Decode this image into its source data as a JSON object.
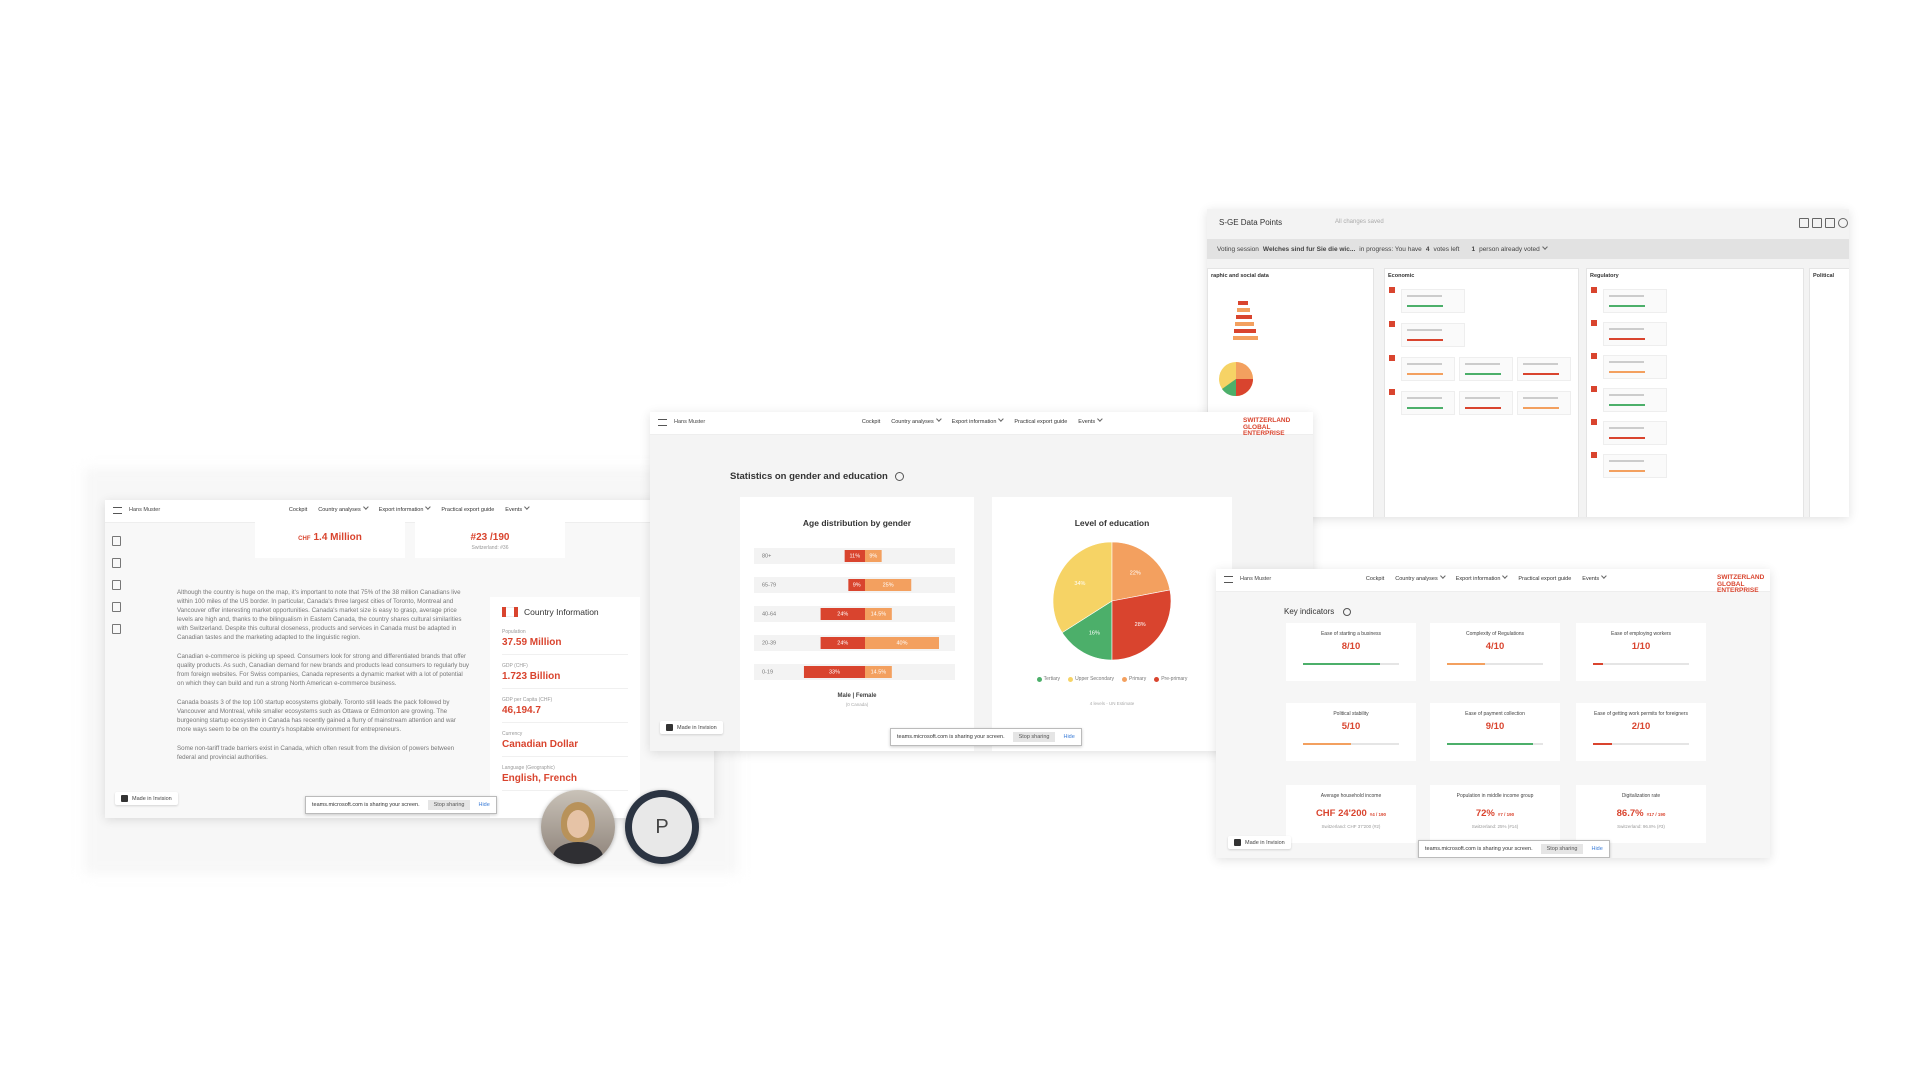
{
  "chart_data": [
    {
      "type": "bar",
      "title": "Age distribution by gender",
      "categories": [
        "80+",
        "65-79",
        "40-64",
        "20-39",
        "0-19"
      ],
      "series": [
        {
          "color": "#d9442e",
          "values": [
            11,
            9,
            24,
            24,
            33
          ],
          "value_labels": [
            "11%",
            "9%",
            "24%",
            "24%",
            "33%"
          ]
        },
        {
          "color": "#f3a05f",
          "values": [
            9,
            25,
            14.5,
            40,
            14.5
          ],
          "value_labels": [
            "9%",
            "25%",
            "14.5%",
            "40%",
            "14.5%"
          ]
        }
      ],
      "legend": "Male | Female",
      "note": "(0 Canada)"
    },
    {
      "type": "pie",
      "title": "Level of education",
      "categories": [
        "Tertiary",
        "Upper Secondary",
        "Primary",
        "Pre-primary"
      ],
      "values": [
        16,
        34,
        22,
        28
      ],
      "value_labels": [
        "16%",
        "34%",
        "22%",
        "28%"
      ],
      "colors": [
        "#4caf6a",
        "#f6d365",
        "#f3a05f",
        "#d9442e"
      ],
      "note": "4 levels - UN Estimate"
    }
  ],
  "left_page": {
    "user": "Hans Muster",
    "nav": [
      {
        "label": "Cockpit",
        "dropdown": false
      },
      {
        "label": "Country analyses",
        "dropdown": true
      },
      {
        "label": "Export information",
        "dropdown": true
      },
      {
        "label": "Practical export guide",
        "dropdown": false
      },
      {
        "label": "Events",
        "dropdown": true
      }
    ],
    "stat_cards": [
      {
        "prefix": "CHF",
        "value": "1.4 Million"
      },
      {
        "value": "#23 /190",
        "note": "Switzerland: #36"
      }
    ],
    "paragraphs": [
      "Although the country is huge on the map, it's important to note that 75% of the 38 million Canadians live within 100 miles of the US border. In particular, Canada's three largest cities of Toronto, Montreal and Vancouver offer interesting market opportunities. Canada's market size is easy to grasp, average price levels are high and, thanks to the bilingualism in Eastern Canada, the country shares cultural similarities with Switzerland. Despite this cultural closeness, products and services in Canada must be adapted in Canadian tastes and the marketing adapted to the linguistic region.",
      "Canadian e-commerce is picking up speed. Consumers look for strong and differentiated brands that offer quality products. As such, Canadian demand for new brands and products lead consumers to regularly buy from foreign websites. For Swiss companies, Canada represents a dynamic market with a lot of potential on which they can build and run a strong North American e-commerce business.",
      "Canada boasts 3 of the top 100 startup ecosystems globally. Toronto still leads the pack followed by Vancouver and Montreal, while smaller ecosystems such as Ottawa or Edmonton are growing. The burgeoning startup ecosystem in Canada has recently gained a flurry of mainstream attention and war more ways seem to be on the country's hospitable environment for entrepreneurs.",
      "Some non-tariff trade barriers exist in Canada, which often result from the division of powers between federal and provincial authorities."
    ],
    "country_info": {
      "title": "Country Information",
      "items": [
        {
          "label": "Population",
          "value": "37.59 Million"
        },
        {
          "label": "GDP (CHF)",
          "value": "1.723 Billion"
        },
        {
          "label": "GDP per Capita (CHF)",
          "value": "46,194.7"
        },
        {
          "label": "Currency",
          "value": "Canadian Dollar"
        },
        {
          "label": "Language (Geographic)",
          "value": "English, French"
        }
      ]
    },
    "badge": "Made in Invision",
    "share_bar": {
      "message": "teams.microsoft.com is sharing your screen.",
      "stop": "Stop sharing",
      "hide": "Hide"
    }
  },
  "center_page": {
    "user": "Hans Muster",
    "nav": [
      {
        "label": "Cockpit",
        "dropdown": false
      },
      {
        "label": "Country analyses",
        "dropdown": true
      },
      {
        "label": "Export information",
        "dropdown": true
      },
      {
        "label": "Practical export guide",
        "dropdown": false
      },
      {
        "label": "Events",
        "dropdown": true
      }
    ],
    "logo": [
      "SWITZERLAND",
      "GLOBAL",
      "ENTERPRISE"
    ],
    "heading": "Statistics on gender and education",
    "badge": "Made in Invision",
    "share_bar": {
      "message": "teams.microsoft.com is sharing your screen.",
      "stop": "Stop sharing",
      "hide": "Hide"
    }
  },
  "data_points": {
    "title": "S-GE Data Points",
    "status": "All changes saved",
    "vote_label": "Voting session",
    "vote_question": "Welches sind fur Sie die wic...",
    "vote_progress": "in progress: You have",
    "votes": "4",
    "votes_suffix": "votes left",
    "voters": "1",
    "voters_suffix": "person already voted",
    "columns": [
      "raphic and social data",
      "Economic",
      "Regulatory",
      "Political"
    ]
  },
  "indicators_page": {
    "user": "Hans Muster",
    "nav": [
      {
        "label": "Cockpit",
        "dropdown": false
      },
      {
        "label": "Country analyses",
        "dropdown": true
      },
      {
        "label": "Export information",
        "dropdown": true
      },
      {
        "label": "Practical export guide",
        "dropdown": false
      },
      {
        "label": "Events",
        "dropdown": true
      }
    ],
    "logo": [
      "SWITZERLAND",
      "GLOBAL",
      "ENTERPRISE"
    ],
    "heading": "Key indicators",
    "cards": [
      {
        "title": "Ease of starting a business",
        "score_label": "8/10",
        "score": 8,
        "max": 10,
        "color": "#4caf6a"
      },
      {
        "title": "Complexity of Regulations",
        "score_label": "4/10",
        "score": 4,
        "max": 10,
        "color": "#f3a05f"
      },
      {
        "title": "Ease of employing workers",
        "score_label": "1/10",
        "score": 1,
        "max": 10,
        "color": "#d9442e"
      },
      {
        "title": "Political stability",
        "score_label": "5/10",
        "score": 5,
        "max": 10,
        "color": "#f3a05f"
      },
      {
        "title": "Ease of payment collection",
        "score_label": "9/10",
        "score": 9,
        "max": 10,
        "color": "#4caf6a"
      },
      {
        "title": "Ease of getting work permits for foreigners",
        "score_label": "2/10",
        "score": 2,
        "max": 10,
        "color": "#d9442e"
      },
      {
        "title": "Average household income",
        "value": "CHF 24'200",
        "rank": "#4 / 190",
        "note": "Switzerland: CHF 37'200 (#2)"
      },
      {
        "title": "Population in middle income group",
        "value": "72%",
        "rank": "#7 / 190",
        "note": "Switzerland: 25% (#14)"
      },
      {
        "title": "Digitalization rate",
        "value": "86.7%",
        "rank": "#17 / 190",
        "note": "Switzerland: 96.8% (#3)"
      }
    ],
    "badge": "Made in Invision",
    "share_bar": {
      "message": "teams.microsoft.com is sharing your screen.",
      "stop": "Stop sharing",
      "hide": "Hide"
    }
  },
  "avatar_initial": "P"
}
